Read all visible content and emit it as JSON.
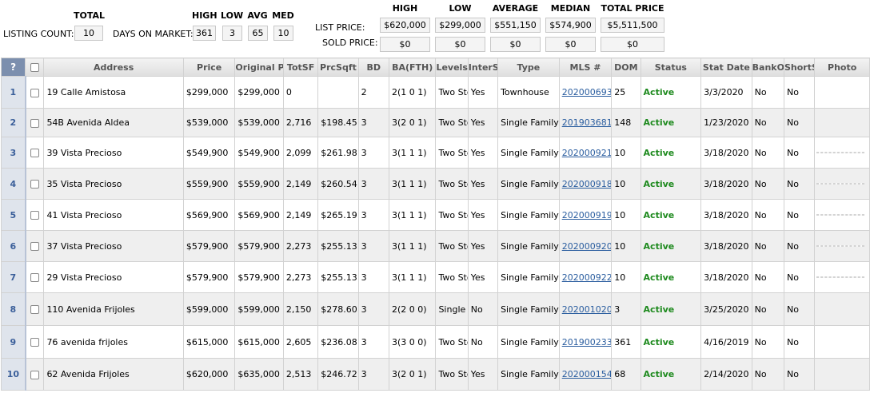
{
  "stats": {
    "total_label": "TOTAL",
    "listing_count_label": "LISTING COUNT:",
    "listing_count": "10",
    "days_on_market_label": "DAYS ON MARKET:",
    "dom_headers": {
      "high": "HIGH",
      "low": "LOW",
      "avg": "AVG",
      "med": "MED"
    },
    "dom_values": {
      "high": "361",
      "low": "3",
      "avg": "65",
      "med": "10"
    },
    "price_headers": {
      "high": "HIGH",
      "low": "LOW",
      "average": "AVERAGE",
      "median": "MEDIAN",
      "total": "TOTAL PRICE"
    },
    "list_price_label": "LIST PRICE:",
    "list_price": {
      "high": "$620,000",
      "low": "$299,000",
      "average": "$551,150",
      "median": "$574,900",
      "total": "$5,511,500"
    },
    "sold_price_label": "SOLD PRICE:",
    "sold_price": {
      "high": "$0",
      "low": "$0",
      "average": "$0",
      "median": "$0",
      "total": "$0"
    }
  },
  "table": {
    "columns": {
      "help": "?",
      "address": "Address",
      "price": "Price",
      "original_price": "Original P",
      "totsf": "TotSF",
      "prcsqft": "PrcSqft",
      "bd": "BD",
      "ba": "BA(FTH)",
      "levels": "Levels",
      "inters": "InterS",
      "type": "Type",
      "mls": "MLS #",
      "dom": "DOM",
      "status": "Status",
      "stat_date": "Stat Date",
      "bank": "BankO",
      "short": "ShortS",
      "photo": "Photo"
    },
    "rows": [
      {
        "num": "1",
        "address": "19 Calle Amistosa",
        "price": "$299,000",
        "original": "$299,000",
        "totsf": "0",
        "prcsqft": "",
        "bd": "2",
        "ba": "2(1 0 1)",
        "levels": "Two Stor",
        "inters": "Yes",
        "type": "Townhouse",
        "mls": "202000693",
        "dom": "25",
        "status": "Active",
        "stat_date": "3/3/2020",
        "bank": "No",
        "short": "No",
        "photo": "house"
      },
      {
        "num": "2",
        "address": "54B Avenida Aldea",
        "price": "$539,000",
        "original": "$539,000",
        "totsf": "2,716",
        "prcsqft": "$198.45",
        "bd": "3",
        "ba": "3(2 0 1)",
        "levels": "Two Stor",
        "inters": "Yes",
        "type": "Single Family",
        "mls": "201903681",
        "dom": "148",
        "status": "Active",
        "stat_date": "1/23/2020",
        "bank": "No",
        "short": "No",
        "photo": "house"
      },
      {
        "num": "3",
        "address": "39 Vista Precioso",
        "price": "$549,900",
        "original": "$549,900",
        "totsf": "2,099",
        "prcsqft": "$261.98",
        "bd": "3",
        "ba": "3(1 1 1)",
        "levels": "Two Stor",
        "inters": "Yes",
        "type": "Single Family",
        "mls": "202000921",
        "dom": "10",
        "status": "Active",
        "stat_date": "3/18/2020",
        "bank": "No",
        "short": "No",
        "photo": "plan"
      },
      {
        "num": "4",
        "address": "35 Vista Precioso",
        "price": "$559,900",
        "original": "$559,900",
        "totsf": "2,149",
        "prcsqft": "$260.54",
        "bd": "3",
        "ba": "3(1 1 1)",
        "levels": "Two Stor",
        "inters": "Yes",
        "type": "Single Family",
        "mls": "202000918",
        "dom": "10",
        "status": "Active",
        "stat_date": "3/18/2020",
        "bank": "No",
        "short": "No",
        "photo": "plan"
      },
      {
        "num": "5",
        "address": "41 Vista Precioso",
        "price": "$569,900",
        "original": "$569,900",
        "totsf": "2,149",
        "prcsqft": "$265.19",
        "bd": "3",
        "ba": "3(1 1 1)",
        "levels": "Two Stor",
        "inters": "Yes",
        "type": "Single Family",
        "mls": "202000919",
        "dom": "10",
        "status": "Active",
        "stat_date": "3/18/2020",
        "bank": "No",
        "short": "No",
        "photo": "plan"
      },
      {
        "num": "6",
        "address": "37 Vista Precioso",
        "price": "$579,900",
        "original": "$579,900",
        "totsf": "2,273",
        "prcsqft": "$255.13",
        "bd": "3",
        "ba": "3(1 1 1)",
        "levels": "Two Stor",
        "inters": "Yes",
        "type": "Single Family",
        "mls": "202000920",
        "dom": "10",
        "status": "Active",
        "stat_date": "3/18/2020",
        "bank": "No",
        "short": "No",
        "photo": "plan"
      },
      {
        "num": "7",
        "address": "29 Vista Precioso",
        "price": "$579,900",
        "original": "$579,900",
        "totsf": "2,273",
        "prcsqft": "$255.13",
        "bd": "3",
        "ba": "3(1 1 1)",
        "levels": "Two Stor",
        "inters": "Yes",
        "type": "Single Family",
        "mls": "202000922",
        "dom": "10",
        "status": "Active",
        "stat_date": "3/18/2020",
        "bank": "No",
        "short": "No",
        "photo": "plan"
      },
      {
        "num": "8",
        "address": "110 Avenida Frijoles",
        "price": "$599,000",
        "original": "$599,000",
        "totsf": "2,150",
        "prcsqft": "$278.60",
        "bd": "3",
        "ba": "2(2 0 0)",
        "levels": "Single",
        "inters": "No",
        "type": "Single Family",
        "mls": "202001020",
        "dom": "3",
        "status": "Active",
        "stat_date": "3/25/2020",
        "bank": "No",
        "short": "No",
        "photo": "interior"
      },
      {
        "num": "9",
        "address": "76 avenida frijoles",
        "price": "$615,000",
        "original": "$615,000",
        "totsf": "2,605",
        "prcsqft": "$236.08",
        "bd": "3",
        "ba": "3(3 0 0)",
        "levels": "Two Stor",
        "inters": "No",
        "type": "Single Family",
        "mls": "201900233",
        "dom": "361",
        "status": "Active",
        "stat_date": "4/16/2019",
        "bank": "No",
        "short": "No",
        "photo": "house"
      },
      {
        "num": "10",
        "address": "62 Avenida Frijoles",
        "price": "$620,000",
        "original": "$635,000",
        "totsf": "2,513",
        "prcsqft": "$246.72",
        "bd": "3",
        "ba": "3(2 0 1)",
        "levels": "Two Stor",
        "inters": "Yes",
        "type": "Single Family",
        "mls": "202000154",
        "dom": "68",
        "status": "Active",
        "stat_date": "2/14/2020",
        "bank": "No",
        "short": "No",
        "photo": "interior"
      }
    ]
  }
}
